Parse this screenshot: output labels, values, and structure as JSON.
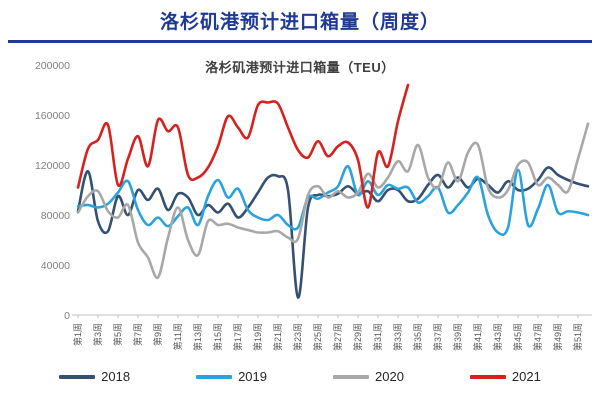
{
  "page": {
    "title": "洛杉矶港预计进口箱量（周度）"
  },
  "colors": {
    "accent_navy": "#1e3a94",
    "axis_line": "#c0c0c0",
    "y_tick_text": "#808080",
    "x_tick_text": "#595959",
    "chart_title_text": "#3f3f3f"
  },
  "chart_data": {
    "type": "line",
    "title": "洛杉矶港预计进口箱量（TEU）",
    "x_unit": "周",
    "weeks_total": 52,
    "x_tick_weeks": [
      1,
      3,
      5,
      7,
      9,
      11,
      13,
      15,
      17,
      19,
      21,
      23,
      25,
      27,
      29,
      31,
      33,
      35,
      37,
      39,
      41,
      43,
      45,
      47,
      49,
      51
    ],
    "x_tick_labels": [
      "第1周",
      "第3周",
      "第5周",
      "第7周",
      "第9周",
      "第11周",
      "第13周",
      "第15周",
      "第17周",
      "第19周",
      "第21周",
      "第23周",
      "第25周",
      "第27周",
      "第29周",
      "第31周",
      "第33周",
      "第35周",
      "第37周",
      "第39周",
      "第41周",
      "第43周",
      "第45周",
      "第47周",
      "第49周",
      "第51周"
    ],
    "ylim": [
      0,
      200000
    ],
    "yticks": [
      0,
      40000,
      80000,
      120000,
      160000,
      200000
    ],
    "grid": false,
    "legend_position": "bottom",
    "series": [
      {
        "name": "2018",
        "color": "#355172",
        "values": [
          83000,
          115000,
          75000,
          67000,
          95000,
          80000,
          100000,
          92000,
          101000,
          84000,
          97000,
          94000,
          80000,
          88000,
          82000,
          89000,
          78000,
          86000,
          98000,
          110000,
          111000,
          100000,
          14000,
          86000,
          96000,
          95000,
          97000,
          103000,
          97000,
          99000,
          91000,
          100000,
          100000,
          91000,
          93000,
          104000,
          112000,
          102000,
          110000,
          102000,
          109000,
          104000,
          98000,
          107000,
          100000,
          101000,
          108000,
          118000,
          112000,
          108000,
          105000,
          103000
        ]
      },
      {
        "name": "2019",
        "color": "#2aa3dc",
        "values": [
          87000,
          88000,
          86000,
          89000,
          98000,
          107000,
          84000,
          72000,
          78000,
          71000,
          79000,
          86000,
          72000,
          95000,
          108000,
          94000,
          101000,
          84000,
          78000,
          76000,
          80000,
          72000,
          70000,
          94000,
          93000,
          98000,
          103000,
          119000,
          96000,
          107000,
          96000,
          104000,
          101000,
          102000,
          90000,
          95000,
          102000,
          82000,
          88000,
          98000,
          110000,
          80000,
          66000,
          70000,
          116000,
          72000,
          85000,
          104000,
          82000,
          83000,
          82000,
          80000
        ]
      },
      {
        "name": "2020",
        "color": "#a8a8a8",
        "values": [
          82000,
          95000,
          99000,
          83000,
          78000,
          88000,
          58000,
          46000,
          30000,
          62000,
          86000,
          60000,
          48000,
          75000,
          72000,
          73000,
          70000,
          68000,
          66000,
          66000,
          67000,
          62000,
          61000,
          96000,
          103000,
          94000,
          99000,
          94000,
          98000,
          113000,
          102000,
          110000,
          123000,
          115000,
          136000,
          110000,
          102000,
          122000,
          107000,
          130000,
          136000,
          102000,
          94000,
          100000,
          120000,
          122000,
          104000,
          110000,
          104000,
          99000,
          125000,
          153000
        ]
      },
      {
        "name": "2021",
        "color": "#d7211e",
        "values": [
          102000,
          133000,
          140000,
          152000,
          104000,
          125000,
          143000,
          119000,
          156000,
          147000,
          150000,
          112000,
          110000,
          118000,
          135000,
          159000,
          150000,
          142000,
          168000,
          170000,
          169000,
          150000,
          132000,
          126000,
          139000,
          127000,
          135000,
          138000,
          124000,
          86000,
          130000,
          119000,
          155000,
          184000
        ]
      }
    ]
  }
}
